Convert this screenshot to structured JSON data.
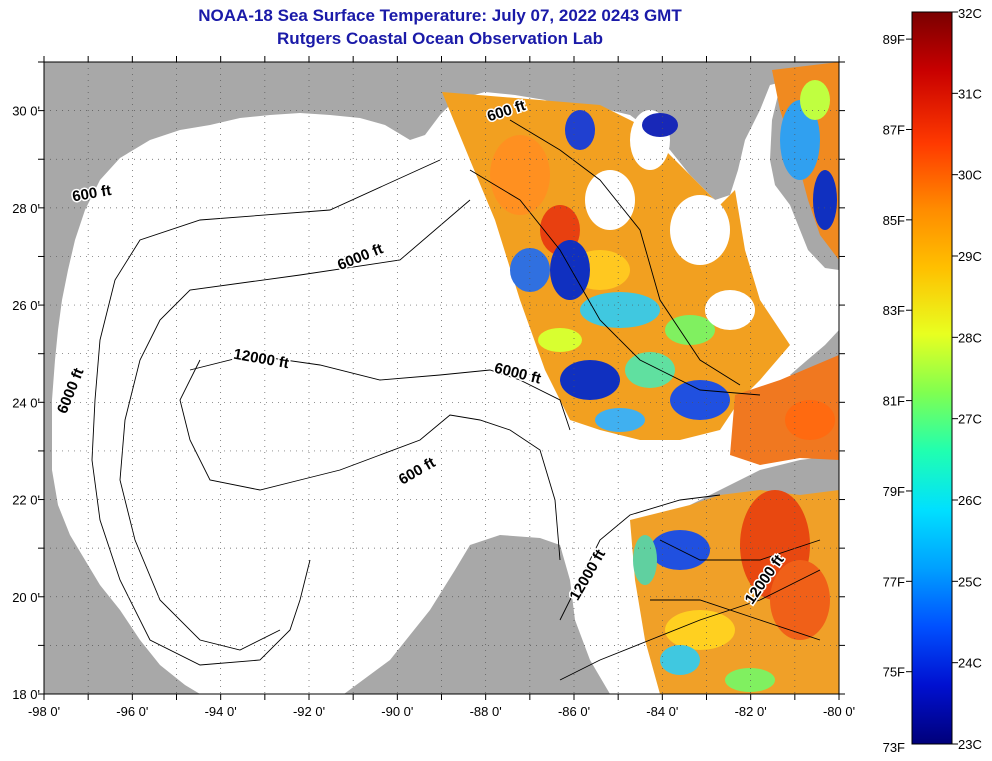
{
  "title": "NOAA-18 Sea Surface Temperature:  July 07, 2022 0243 GMT",
  "subtitle": "Rutgers Coastal Ocean Observation Lab",
  "map": {
    "lon_range": [
      -98,
      -80
    ],
    "lat_range": [
      18,
      31
    ],
    "lon_ticks": [
      "-98 0'",
      "-96 0'",
      "-94 0'",
      "-92 0'",
      "-90 0'",
      "-88 0'",
      "-86 0'",
      "-84 0'",
      "-82 0'",
      "-80 0'"
    ],
    "lat_ticks": [
      "18 0'",
      "20 0'",
      "22 0'",
      "24 0'",
      "26 0'",
      "28 0'",
      "30 0'"
    ],
    "grid": "dotted",
    "land_color": "#a8a8a8",
    "nodata_color": "#ffffff",
    "contour_labels": [
      {
        "text": "600 ft",
        "lon": -96.9,
        "lat": 28.2,
        "angle": -10
      },
      {
        "text": "6000 ft",
        "lon": -90.8,
        "lat": 26.9,
        "angle": -22
      },
      {
        "text": "12000 ft",
        "lon": -93.1,
        "lat": 24.8,
        "angle": 10
      },
      {
        "text": "6000 ft",
        "lon": -97.3,
        "lat": 24.2,
        "angle": -68
      },
      {
        "text": "6000 ft",
        "lon": -87.3,
        "lat": 24.5,
        "angle": 14
      },
      {
        "text": "600 ft",
        "lon": -89.5,
        "lat": 22.5,
        "angle": -30
      },
      {
        "text": "600 ft",
        "lon": -87.5,
        "lat": 29.9,
        "angle": -18
      },
      {
        "text": "12000 ft",
        "lon": -85.6,
        "lat": 20.4,
        "angle": -60
      },
      {
        "text": "12000 ft",
        "lon": -81.6,
        "lat": 20.3,
        "angle": -55
      }
    ]
  },
  "colorbar": {
    "celsius_labels": [
      "32C",
      "31C",
      "30C",
      "29C",
      "28C",
      "27C",
      "26C",
      "25C",
      "24C",
      "23C"
    ],
    "fahrenheit_labels": [
      "89F",
      "87F",
      "85F",
      "83F",
      "81F",
      "79F",
      "77F",
      "75F",
      "73F"
    ],
    "min_c": 23,
    "max_c": 32
  }
}
